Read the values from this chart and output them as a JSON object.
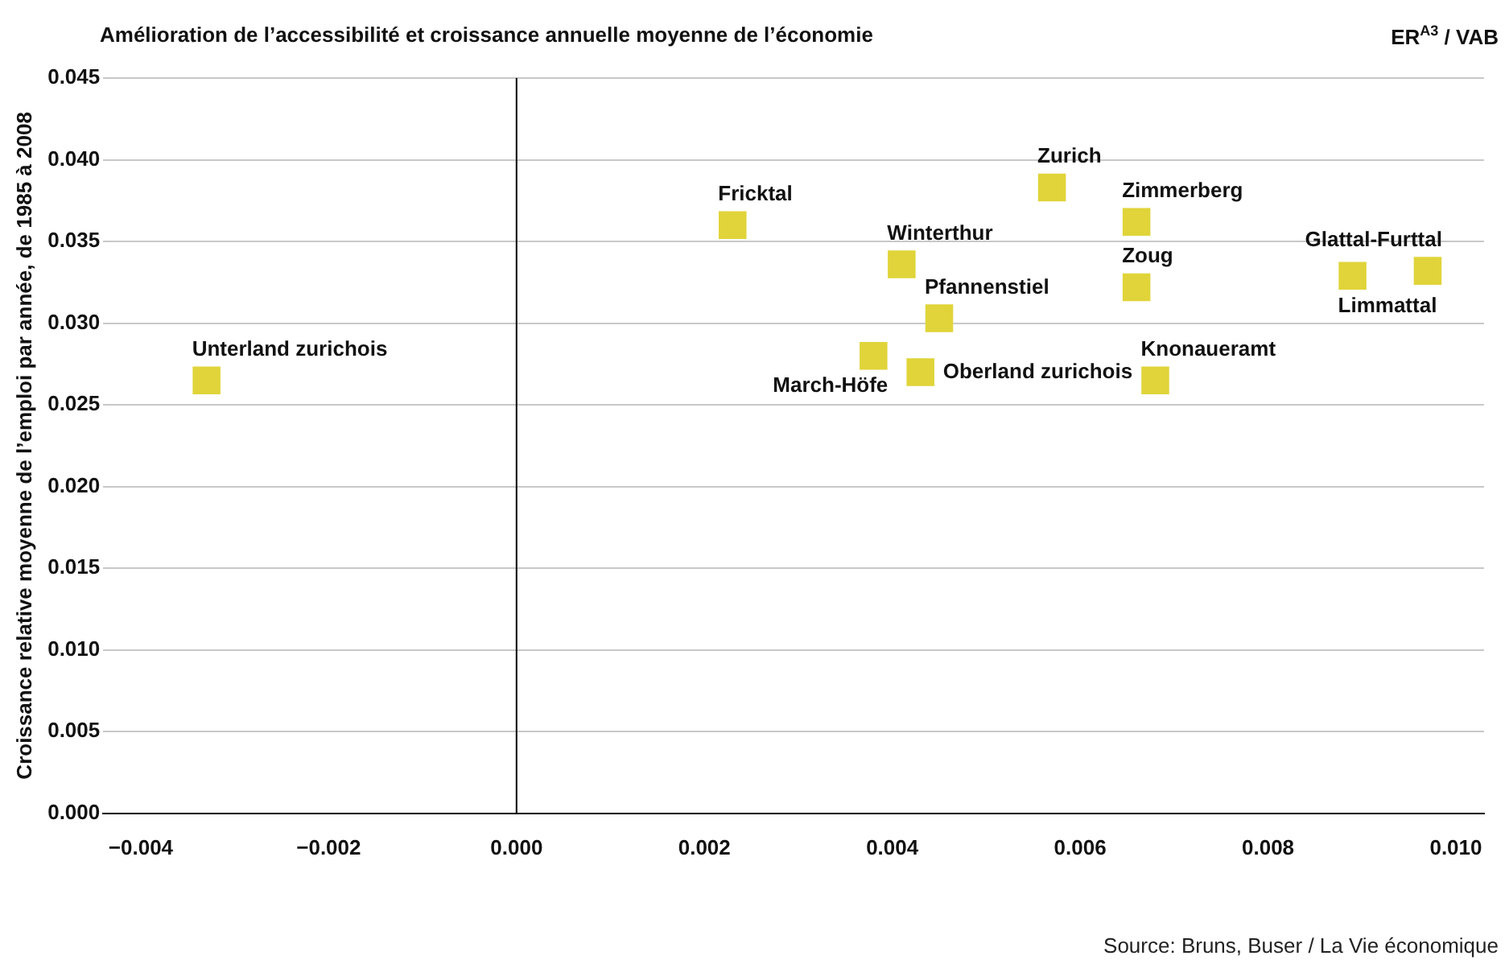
{
  "chart_data": {
    "type": "scatter",
    "title": "Amélioration de l’accessibilité et croissance annuelle moyenne de l’économie",
    "subtitle": "ER$^{A3}$ / VAB",
    "ylabel": "Croissance relative moyenne de l’emploi par année, de 1985 à 2008",
    "x": [
      -0.0033,
      0.0023,
      0.0041,
      0.0045,
      0.0038,
      0.0043,
      0.0057,
      0.0066,
      0.0066,
      0.0068,
      0.0089,
      0.0097
    ],
    "values": [
      0.0265,
      0.036,
      0.0336,
      0.0303,
      0.028,
      0.027,
      0.0383,
      0.0362,
      0.0322,
      0.0265,
      0.0329,
      0.0332
    ],
    "color": "#e0d43a",
    "marker": "square",
    "grid": "y",
    "legend": false,
    "xlim": [
      -0.0044,
      0.0103
    ],
    "ylim": [
      0,
      0.045
    ],
    "xticks": [
      {
        "value": -0.004,
        "label": "−0.004"
      },
      {
        "value": -0.002,
        "label": "−0.002"
      },
      {
        "value": 0,
        "label": "0.000"
      },
      {
        "value": 0.002,
        "label": "0.002"
      },
      {
        "value": 0.004,
        "label": "0.004"
      },
      {
        "value": 0.006,
        "label": "0.006"
      },
      {
        "value": 0.008,
        "label": "0.008"
      },
      {
        "value": 0.01,
        "label": "0.010"
      }
    ],
    "yticks": [
      {
        "value": 0,
        "label": "0.000"
      },
      {
        "value": 0.005,
        "label": "0.005"
      },
      {
        "value": 0.01,
        "label": "0.010"
      },
      {
        "value": 0.015,
        "label": "0.015"
      },
      {
        "value": 0.02,
        "label": "0.020"
      },
      {
        "value": 0.025,
        "label": "0.025"
      },
      {
        "value": 0.03,
        "label": "0.030"
      },
      {
        "value": 0.035,
        "label": "0.035"
      },
      {
        "value": 0.04,
        "label": "0.040"
      },
      {
        "value": 0.045,
        "label": "0.045"
      }
    ],
    "ref_lines": [
      {
        "axis": "x",
        "value": 0,
        "color": "#000000"
      }
    ],
    "annotations": [
      {
        "text": "Unterland zurichois",
        "x": -0.0033,
        "y": 0.0265
      },
      {
        "text": "Fricktal",
        "x": 0.0023,
        "y": 0.036
      },
      {
        "text": "Winterthur",
        "x": 0.0041,
        "y": 0.0336
      },
      {
        "text": "Pfannenstiel",
        "x": 0.0045,
        "y": 0.0303
      },
      {
        "text": "March-Höfe",
        "x": 0.0038,
        "y": 0.028
      },
      {
        "text": "Oberland zurichois",
        "x": 0.0043,
        "y": 0.027
      },
      {
        "text": "Zurich",
        "x": 0.0057,
        "y": 0.0383
      },
      {
        "text": "Zimmerberg",
        "x": 0.0066,
        "y": 0.0362
      },
      {
        "text": "Zoug",
        "x": 0.0066,
        "y": 0.0322
      },
      {
        "text": "Knonaueramt",
        "x": 0.0068,
        "y": 0.0265
      },
      {
        "text": "Limmattal",
        "x": 0.0089,
        "y": 0.0329
      },
      {
        "text": "Glattal-Furttal",
        "x": 0.0097,
        "y": 0.0332
      },
      "Source: Bruns, Buser / La Vie économique"
    ]
  }
}
